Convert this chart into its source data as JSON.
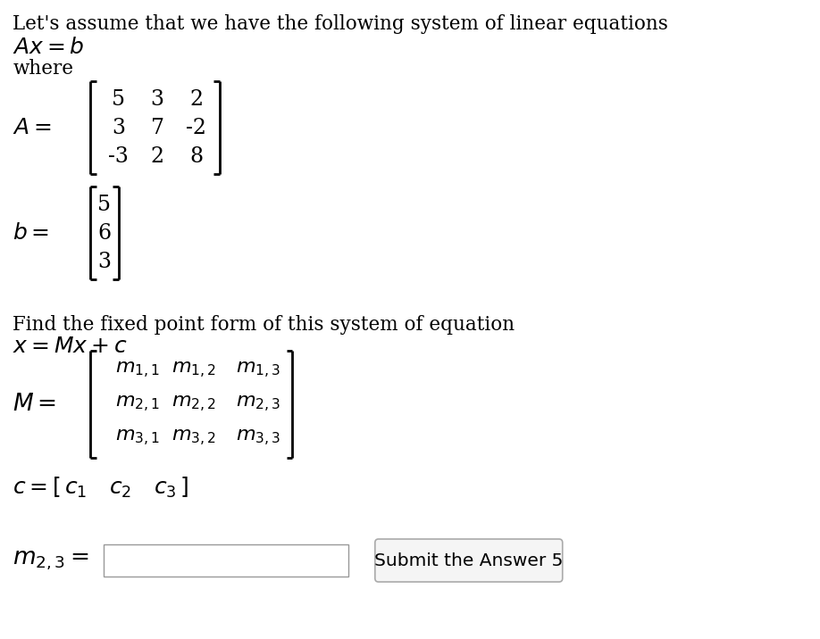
{
  "bg_color": "#ffffff",
  "text_color": "#000000",
  "title_line": "Let's assume that we have the following system of linear equations",
  "A_matrix": [
    [
      "5",
      "3",
      "2"
    ],
    [
      "3",
      "7",
      "-2"
    ],
    [
      "-3",
      "2",
      "8"
    ]
  ],
  "b_vector": [
    "5",
    "6",
    "3"
  ],
  "M_matrix": [
    [
      "m_{1,1}",
      "m_{1,2}",
      "m_{1,3}"
    ],
    [
      "m_{2,1}",
      "m_{2,2}",
      "m_{2,3}"
    ],
    [
      "m_{3,1}",
      "m_{3,2}",
      "m_{3,3}"
    ]
  ],
  "button_text": "Submit the Answer 5",
  "fs_title": 15.5,
  "fs_body": 15.5,
  "fs_math": 17,
  "fs_matrix": 17,
  "fs_msubscript": 15
}
